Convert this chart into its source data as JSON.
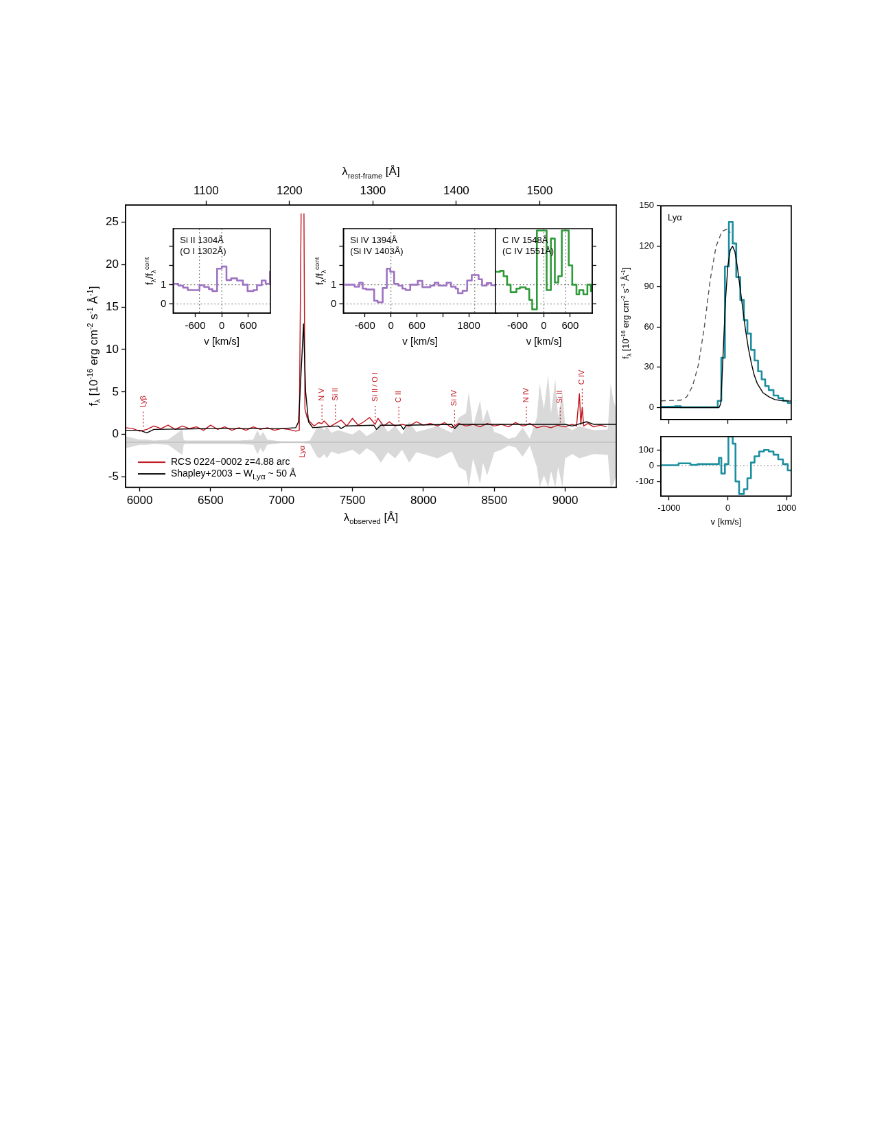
{
  "chart_data": [
    {
      "type": "line",
      "xlabel": "λ$_{observed}$ [Å]",
      "x2label": "λ$_{rest-frame}$ [Å]",
      "ylabel": "f$_{λ}$ [10$^{-16}$ erg cm$^{-2}$ s$^{-1}$ Å$^{-1}$]",
      "xlim": [
        5900,
        9360
      ],
      "xticks": [
        6000,
        6500,
        7000,
        7500,
        8000,
        8500,
        9000
      ],
      "x2lim": [
        1003.4,
        1591.8
      ],
      "x2ticks": [
        1100,
        1200,
        1300,
        1400,
        1500
      ],
      "ylim": [
        -6.2,
        27
      ],
      "yticks": [
        -5,
        0,
        5,
        10,
        15,
        20,
        25
      ],
      "legend": "bottom left",
      "annotations": [
        {
          "text": "Lyβ",
          "x": 6025,
          "y": 0.5
        },
        {
          "text": "Lyα",
          "x": 7150,
          "y": -0.9
        },
        {
          "text": "N V",
          "x": 7285,
          "y": 1.3
        },
        {
          "text": "Si II",
          "x": 7380,
          "y": 1.3
        },
        {
          "text": "Si II / O I",
          "x": 7660,
          "y": 1.2
        },
        {
          "text": "C II",
          "x": 7827,
          "y": 1.1
        },
        {
          "text": "Si IV",
          "x": 8220,
          "y": 0.7
        },
        {
          "text": "N IV",
          "x": 8726,
          "y": 1.1
        },
        {
          "text": "Si II",
          "x": 8965,
          "y": 1.0
        },
        {
          "text": "C IV",
          "x": 9120,
          "y": 3.2
        }
      ],
      "series": [
        {
          "color": "#c0c0c0",
          "x": [
            5900,
            5950,
            6000,
            6050,
            6100,
            6200,
            6300,
            6310,
            6320,
            6400,
            6500,
            6600,
            6700,
            6800,
            6830,
            6850,
            6870,
            6900,
            7000,
            7100,
            7150,
            7200,
            7250,
            7270,
            7300,
            7320,
            7350,
            7400,
            7500,
            7550,
            7600,
            7650,
            7700,
            7750,
            7800,
            7850,
            7900,
            7950,
            8000,
            8100,
            8200,
            8250,
            8300,
            8320,
            8350,
            8400,
            8420,
            8450,
            8500,
            8550,
            8600,
            8650,
            8700,
            8720,
            8750,
            8800,
            8820,
            8850,
            8880,
            8900,
            8930,
            8950,
            8980,
            9000,
            9050,
            9100,
            9200,
            9300,
            9320,
            9340,
            9360
          ],
          "values": [
            -0.9,
            -0.9,
            -0.9,
            -0.9,
            -0.9,
            -0.9,
            -0.9,
            -0.9,
            -0.9,
            -0.9,
            -0.9,
            -0.9,
            -0.9,
            -0.9,
            -0.9,
            -0.9,
            -0.9,
            -0.9,
            -0.9,
            -0.9,
            -0.9,
            -0.9,
            -0.9,
            -0.9,
            -0.9,
            -0.9,
            -0.9,
            -0.9,
            -0.9,
            -0.9,
            -0.9,
            -0.9,
            -0.9,
            -0.9,
            -0.9,
            -0.9,
            -0.9,
            -0.9,
            -0.9,
            -0.9,
            -0.9,
            -0.9,
            -0.9,
            -0.9,
            -0.9,
            -0.9,
            -0.9,
            -0.9,
            -0.9,
            -0.9,
            -0.9,
            -0.9,
            -0.9,
            -0.9,
            -0.9,
            -0.9,
            -0.9,
            -0.9,
            -0.9,
            -0.9,
            -0.9,
            -0.9,
            -0.9,
            -0.9,
            -0.9,
            -0.9,
            -0.9,
            -0.9,
            -0.9,
            -0.9,
            -0.9
          ],
          "upper": [
            -0.2,
            -0.4,
            -0.6,
            -0.6,
            -0.7,
            -0.6,
            0.6,
            -0.6,
            -0.7,
            -0.7,
            -0.7,
            -0.7,
            -0.7,
            -0.6,
            0.5,
            -0.2,
            0.3,
            -0.6,
            -0.8,
            -0.8,
            -0.8,
            -0.7,
            0.8,
            1.0,
            0.5,
            1.0,
            0.2,
            0.5,
            0.0,
            0.6,
            -0.2,
            0.3,
            1.5,
            0.3,
            1.0,
            0.0,
            1.5,
            0.3,
            0.5,
            1.0,
            0.2,
            2.0,
            2.5,
            5.0,
            1.0,
            4.0,
            1.5,
            3.0,
            0.3,
            0.0,
            -0.5,
            -0.3,
            0.8,
            0.3,
            -0.5,
            2.0,
            6.0,
            3.0,
            7.0,
            2.5,
            6.5,
            2.0,
            5.0,
            1.0,
            0.5,
            1.0,
            0.5,
            0.6,
            6.0,
            4.0,
            3.0
          ],
          "lower": [
            -1.6,
            -1.4,
            -1.2,
            -1.2,
            -1.1,
            -1.2,
            -2.4,
            -1.2,
            -1.1,
            -1.1,
            -1.1,
            -1.1,
            -1.1,
            -1.2,
            -2.3,
            -1.6,
            -2.1,
            -1.2,
            -1.0,
            -1.0,
            -1.0,
            -1.1,
            -2.6,
            -2.8,
            -2.3,
            -2.8,
            -2.0,
            -2.3,
            -1.8,
            -2.4,
            -1.6,
            -2.1,
            -3.3,
            -2.1,
            -2.8,
            -1.8,
            -3.3,
            -2.1,
            -2.3,
            -2.8,
            -2.0,
            -3.8,
            -4.3,
            -6.2,
            -2.8,
            -5.8,
            -3.3,
            -4.8,
            -2.1,
            -1.8,
            -1.3,
            -1.5,
            -2.6,
            -2.1,
            -1.3,
            -3.8,
            -6.2,
            -4.8,
            -6.2,
            -4.3,
            -6.2,
            -3.8,
            -6.2,
            -2.8,
            -2.3,
            -2.8,
            -2.3,
            -2.4,
            -6.2,
            -5.8,
            -4.8
          ]
        },
        {
          "name": "RCS 0224−0002 z=4.88 arc",
          "color": "#c0141c",
          "x": [
            5900,
            5950,
            6000,
            6025,
            6050,
            6100,
            6150,
            6200,
            6250,
            6300,
            6350,
            6400,
            6450,
            6500,
            6550,
            6600,
            6650,
            6700,
            6750,
            6800,
            6850,
            6900,
            6950,
            7000,
            7050,
            7100,
            7125,
            7138,
            7140,
            7155,
            7158,
            7165,
            7180,
            7200,
            7230,
            7260,
            7285,
            7300,
            7340,
            7380,
            7420,
            7460,
            7500,
            7540,
            7580,
            7620,
            7660,
            7680,
            7720,
            7760,
            7800,
            7827,
            7850,
            7900,
            7950,
            8000,
            8050,
            8100,
            8150,
            8200,
            8250,
            8300,
            8350,
            8400,
            8450,
            8500,
            8550,
            8600,
            8650,
            8700,
            8726,
            8750,
            8800,
            8850,
            8900,
            8950,
            8965,
            9000,
            9050,
            9080,
            9100,
            9110,
            9120,
            9130,
            9160,
            9200,
            9250,
            9290
          ],
          "values": [
            0.8,
            0.7,
            0.4,
            0.5,
            0.6,
            1.0,
            0.7,
            1.1,
            0.6,
            1.0,
            0.7,
            0.9,
            0.5,
            1.1,
            0.6,
            0.9,
            0.5,
            0.8,
            0.5,
            0.9,
            0.6,
            0.8,
            0.5,
            0.7,
            0.6,
            0.4,
            0.5,
            26,
            null,
            null,
            26,
            3,
            2,
            1.5,
            1.0,
            1.4,
            1.3,
            1.6,
            0.9,
            1.3,
            1.7,
            1.0,
            1.9,
            1.1,
            1.5,
            2.0,
            1.2,
            1.9,
            1.0,
            1.5,
            1.0,
            1.1,
            1.2,
            1.0,
            1.5,
            1.1,
            1.3,
            1.0,
            1.4,
            0.8,
            1.3,
            1.0,
            1.2,
            0.9,
            1.3,
            1.0,
            1.2,
            0.9,
            1.4,
            1.0,
            1.1,
            1.3,
            0.8,
            1.0,
            0.8,
            1.1,
            1.0,
            0.9,
            1.2,
            1.0,
            4.8,
            1.2,
            3.2,
            1.0,
            1.3,
            0.9,
            1.1,
            0.9
          ]
        },
        {
          "name": "Shapley+2003 − W$_{Lyα}$ ~ 50 Å",
          "color": "#000000",
          "x": [
            5900,
            6000,
            6050,
            6100,
            6500,
            7000,
            7100,
            7120,
            7140,
            7155,
            7170,
            7190,
            7220,
            7300,
            7400,
            7420,
            7450,
            7650,
            7670,
            7700,
            7840,
            7860,
            7880,
            8200,
            8220,
            8250,
            9000,
            9050,
            9150,
            9200,
            9360
          ],
          "values": [
            0.5,
            0.5,
            0.2,
            0.6,
            0.7,
            0.7,
            0.8,
            1.5,
            8,
            13,
            5,
            1.5,
            0.8,
            0.9,
            1.0,
            0.7,
            1.0,
            1.1,
            0.6,
            1.1,
            1.1,
            0.6,
            1.1,
            1.2,
            0.7,
            1.2,
            1.2,
            1.0,
            1.5,
            1.2,
            1.2
          ]
        }
      ]
    },
    {
      "type": "step",
      "xlabel": "v [km/s]",
      "ylabel": "f$_{λ}$/f$_{λ}$$^{cont}$",
      "xlim": [
        -1100,
        1100
      ],
      "xticks": [
        -600,
        0,
        600
      ],
      "ylim": [
        -0.47,
        3.9
      ],
      "yticks": [
        0,
        1,
        {
          "value": 2,
          "label": null
        },
        {
          "value": 3,
          "label": null
        }
      ],
      "ref_lines": [
        {
          "axis": "x",
          "value": -506,
          "color": "#808080",
          "line_style": "dotted"
        },
        {
          "axis": "x",
          "value": 0,
          "color": "#808080",
          "line_style": "dotted"
        },
        {
          "axis": "y",
          "value": 0,
          "color": "#808080",
          "line_style": "dotted"
        },
        {
          "axis": "y",
          "value": 1,
          "color": "#808080",
          "line_style": "dotted"
        }
      ],
      "annotations": [
        "Si II 1304Å",
        "(O I 1302Å)"
      ],
      "series": [
        {
          "color": "#9e72c2",
          "x": [
            -1100,
            -982,
            -876,
            -770,
            -504,
            -398,
            -292,
            -212,
            -106,
            0,
            106,
            212,
            345,
            478,
            584,
            717,
            796,
            903,
            993,
            1089,
            1100
          ],
          "values": [
            1.05,
            0.95,
            0.85,
            0.72,
            0.97,
            0.88,
            0.77,
            0.67,
            1.83,
            1.94,
            1.24,
            1.33,
            1.22,
            1.0,
            0.67,
            0.72,
            0.97,
            1.22,
            1.05,
            1.67,
            1.67
          ]
        }
      ]
    },
    {
      "type": "step",
      "xlabel": "v [km/s]",
      "ylabel": "f$_{λ}$/f$_{λ}$$^{cont}$",
      "xlim": [
        -1100,
        2450
      ],
      "xticks": [
        -600,
        0,
        600,
        {
          "value": 1200,
          "label": null
        },
        1800
      ],
      "ylim": [
        -0.47,
        3.9
      ],
      "yticks": [
        0,
        1,
        {
          "value": 2,
          "label": null
        },
        {
          "value": 3,
          "label": null
        }
      ],
      "ref_lines": [
        {
          "axis": "x",
          "value": 0,
          "color": "#808080",
          "line_style": "dotted"
        },
        {
          "axis": "x",
          "value": 1938,
          "color": "#808080",
          "line_style": "dotted"
        },
        {
          "axis": "y",
          "value": 0,
          "color": "#808080",
          "line_style": "dotted"
        },
        {
          "axis": "y",
          "value": 1,
          "color": "#808080",
          "line_style": "dotted"
        }
      ],
      "annotations": [
        "Si IV 1394Å",
        "(Si IV 1403Å)"
      ],
      "series": [
        {
          "color": "#9e72c2",
          "x": [
            -1100,
            -839,
            -733,
            -653,
            -573,
            -388,
            -308,
            -191,
            -96,
            -16,
            74,
            170,
            266,
            340,
            446,
            621,
            727,
            913,
            1009,
            1099,
            1285,
            1391,
            1497,
            1551,
            1657,
            1763,
            1869,
            2028,
            2108,
            2214,
            2320,
            2450
          ],
          "values": [
            1.0,
            0.9,
            1.1,
            0.8,
            0.75,
            0.17,
            0.09,
            0.83,
            1.83,
            1.67,
            1.05,
            0.95,
            0.8,
            0.72,
            1.0,
            1.2,
            0.87,
            0.95,
            1.1,
            0.95,
            1.1,
            0.9,
            0.8,
            0.56,
            0.69,
            1.22,
            1.5,
            1.28,
            0.95,
            1.08,
            0.97,
            0.97
          ]
        }
      ]
    },
    {
      "type": "step",
      "xlabel": "v [km/s]",
      "xlim": [
        -1100,
        1100
      ],
      "xticks": [
        -600,
        0,
        600
      ],
      "ylim": [
        -0.47,
        3.9
      ],
      "yticks": [
        0,
        1,
        {
          "value": 2,
          "label": null
        },
        {
          "value": 3,
          "label": null
        }
      ],
      "tick_labels": "x",
      "ref_lines": [
        {
          "axis": "x",
          "value": 0,
          "color": "#808080",
          "line_style": "dotted"
        },
        {
          "axis": "x",
          "value": 498,
          "color": "#808080",
          "line_style": "dotted"
        },
        {
          "axis": "y",
          "value": 0,
          "color": "#808080",
          "line_style": "dotted"
        },
        {
          "axis": "y",
          "value": 1,
          "color": "#808080",
          "line_style": "dotted"
        }
      ],
      "annotations": [
        "C IV 1548Å",
        "(C IV 1551Å)"
      ],
      "series": [
        {
          "color": "#2f9a3a",
          "x": [
            -1100,
            -994,
            -915,
            -836,
            -756,
            -624,
            -545,
            -413,
            -333,
            -265,
            -159,
            63,
            159,
            249,
            328,
            407,
            566,
            645,
            741,
            804,
            899,
            989,
            1069,
            1100
          ],
          "values": [
            1.67,
            1.72,
            1.44,
            1.0,
            0.61,
            0.8,
            0.86,
            0.78,
            0.22,
            -0.28,
            3.8,
            0.72,
            3.39,
            1.11,
            1.44,
            3.8,
            2.0,
            1.0,
            0.5,
            0.72,
            0.5,
            1.0,
            0.67,
            0.67
          ]
        }
      ]
    },
    {
      "type": "step",
      "ylabel": "f$_{λ}$ [10$^{-16}$ erg cm$^{-2}$ s$^{-1}$ Å$^{-1}$]",
      "xlim": [
        -1140,
        1080
      ],
      "xticks": [
        -1000,
        0,
        1000
      ],
      "ylim": [
        -9,
        150
      ],
      "yticks": [
        0,
        30,
        60,
        90,
        120,
        150
      ],
      "tick_labels": "y",
      "annotations": [
        "Lyα"
      ],
      "series": [
        {
          "type": "line",
          "color": "#555555",
          "line_style": "dashed",
          "x": [
            -1140,
            -800,
            -700,
            -600,
            -500,
            -400,
            -300,
            -200,
            -100,
            0,
            40
          ],
          "values": [
            5,
            5.5,
            8,
            16,
            32,
            60,
            95,
            120,
            131,
            133,
            130
          ]
        },
        {
          "color": "#1b8fa0",
          "x": [
            -1140,
            -900,
            -800,
            -172,
            -111,
            -50,
            18,
            83,
            143,
            212,
            273,
            333,
            394,
            455,
            515,
            576,
            636,
            697,
            778,
            859,
            939,
            1020,
            1080
          ],
          "values": [
            0.6,
            1.0,
            0.3,
            5,
            37,
            105,
            138,
            122,
            97,
            80,
            65,
            55,
            43,
            35,
            27,
            21,
            16,
            13,
            9,
            7,
            5,
            3.5,
            3.5
          ]
        },
        {
          "type": "line",
          "color": "#000000",
          "x": [
            -1140,
            -150,
            -120,
            -80,
            -40,
            0,
            40,
            80,
            120,
            160,
            200,
            250,
            300,
            350,
            400,
            450,
            500,
            600,
            700,
            800,
            900,
            1080
          ],
          "values": [
            0,
            0,
            3,
            40,
            80,
            105,
            117,
            120,
            116,
            105,
            92,
            75,
            58,
            44,
            33,
            24,
            18,
            11,
            8,
            6,
            5.2,
            4.8
          ]
        }
      ]
    },
    {
      "type": "step",
      "xlabel": "v [km/s]",
      "xlim": [
        -1140,
        1080
      ],
      "xticks": [
        -1000,
        0,
        1000
      ],
      "ylim": [
        -19.3,
        18.5
      ],
      "yticks": [
        {
          "value": -10,
          "label": "-10σ"
        },
        0,
        {
          "value": 10,
          "label": "10σ"
        }
      ],
      "ref_lines": [
        {
          "axis": "y",
          "value": 0,
          "color": "#a0a0a0",
          "line_style": "dotted"
        }
      ],
      "series": [
        {
          "color": "#1b8fa0",
          "x": [
            -1140,
            -838,
            -636,
            -515,
            -152,
            -111,
            -50,
            10,
            83,
            131,
            192,
            273,
            333,
            394,
            455,
            535,
            616,
            697,
            778,
            859,
            939,
            1020,
            1080
          ],
          "values": [
            0.3,
            1.5,
            0.5,
            1,
            5,
            -5,
            1,
            18.5,
            14,
            -10,
            -18,
            -15,
            -8,
            2,
            6,
            9,
            10,
            9,
            7,
            4,
            1,
            -3,
            -3
          ]
        }
      ]
    }
  ]
}
